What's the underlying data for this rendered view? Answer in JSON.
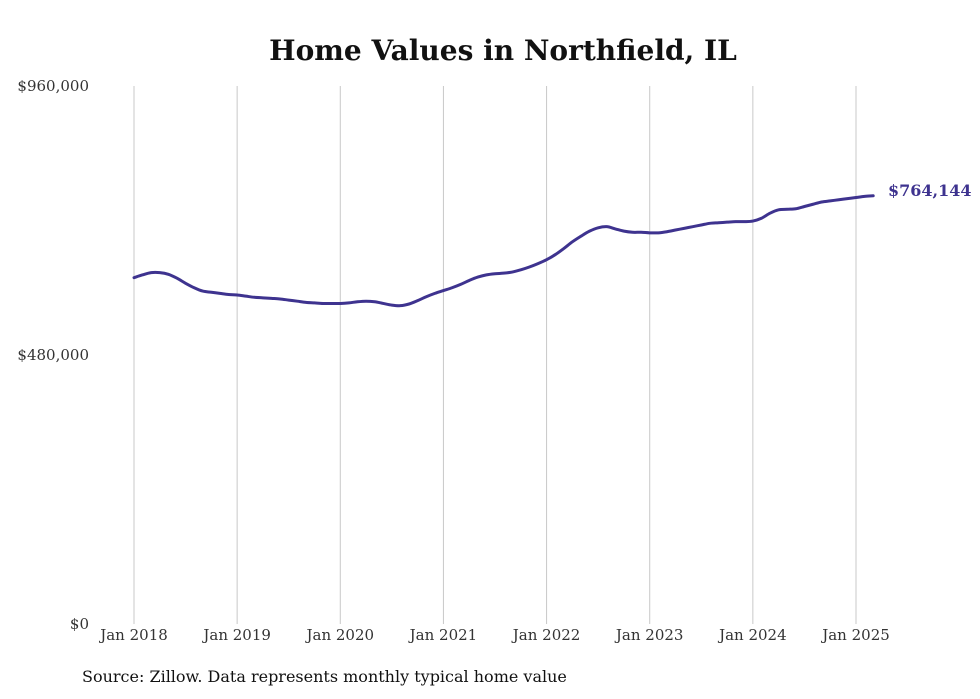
{
  "chart_data": {
    "type": "line",
    "title": "Home Values in Northfield, IL",
    "xlabel": "",
    "ylabel": "",
    "ylim": [
      0,
      960000
    ],
    "yticks": [
      0,
      480000,
      960000
    ],
    "ytick_labels": [
      "$0",
      "$480,000",
      "$960,000"
    ],
    "xticks": [
      "2018-01",
      "2019-01",
      "2020-01",
      "2021-01",
      "2022-01",
      "2023-01",
      "2024-01",
      "2025-01"
    ],
    "xtick_labels": [
      "Jan 2018",
      "Jan 2019",
      "Jan 2020",
      "Jan 2021",
      "Jan 2022",
      "Jan 2023",
      "Jan 2024",
      "Jan 2025"
    ],
    "grid": "vertical",
    "line_color": "#3e338f",
    "end_label": "$764,144",
    "series": [
      {
        "x": [
          "2018-01",
          "2018-02",
          "2018-03",
          "2018-04",
          "2018-05",
          "2018-06",
          "2018-07",
          "2018-08",
          "2018-09",
          "2018-10",
          "2018-11",
          "2018-12",
          "2019-01",
          "2019-02",
          "2019-03",
          "2019-04",
          "2019-05",
          "2019-06",
          "2019-07",
          "2019-08",
          "2019-09",
          "2019-10",
          "2019-11",
          "2019-12",
          "2020-01",
          "2020-02",
          "2020-03",
          "2020-04",
          "2020-05",
          "2020-06",
          "2020-07",
          "2020-08",
          "2020-09",
          "2020-10",
          "2020-11",
          "2020-12",
          "2021-01",
          "2021-02",
          "2021-03",
          "2021-04",
          "2021-05",
          "2021-06",
          "2021-07",
          "2021-08",
          "2021-09",
          "2021-10",
          "2021-11",
          "2021-12",
          "2022-01",
          "2022-02",
          "2022-03",
          "2022-04",
          "2022-05",
          "2022-06",
          "2022-07",
          "2022-08",
          "2022-09",
          "2022-10",
          "2022-11",
          "2022-12",
          "2023-01",
          "2023-02",
          "2023-03",
          "2023-04",
          "2023-05",
          "2023-06",
          "2023-07",
          "2023-08",
          "2023-09",
          "2023-10",
          "2023-11",
          "2023-12",
          "2024-01",
          "2024-02",
          "2024-03",
          "2024-04",
          "2024-05",
          "2024-06",
          "2024-07",
          "2024-08",
          "2024-09",
          "2024-10",
          "2024-11",
          "2024-12",
          "2025-01",
          "2025-02",
          "2025-03"
        ],
        "values": [
          618000,
          623000,
          627000,
          627000,
          624000,
          617000,
          608000,
          600000,
          594000,
          592000,
          590000,
          588000,
          587000,
          585000,
          583000,
          582000,
          581000,
          580000,
          578000,
          576000,
          574000,
          573000,
          572000,
          572000,
          572000,
          573000,
          575000,
          576000,
          575000,
          572000,
          569000,
          568000,
          571000,
          577000,
          584000,
          590000,
          595000,
          600000,
          606000,
          613000,
          619000,
          623000,
          625000,
          626000,
          628000,
          632000,
          637000,
          643000,
          650000,
          659000,
          670000,
          682000,
          692000,
          701000,
          707000,
          709000,
          705000,
          701000,
          699000,
          699000,
          698000,
          698000,
          700000,
          703000,
          706000,
          709000,
          712000,
          715000,
          716000,
          717000,
          718000,
          718000,
          719000,
          724000,
          733000,
          739000,
          740000,
          741000,
          745000,
          749000,
          753000,
          755000,
          757000,
          759000,
          761000,
          763000,
          764144
        ]
      }
    ]
  },
  "source_note": "Source: Zillow. Data represents monthly typical home value"
}
